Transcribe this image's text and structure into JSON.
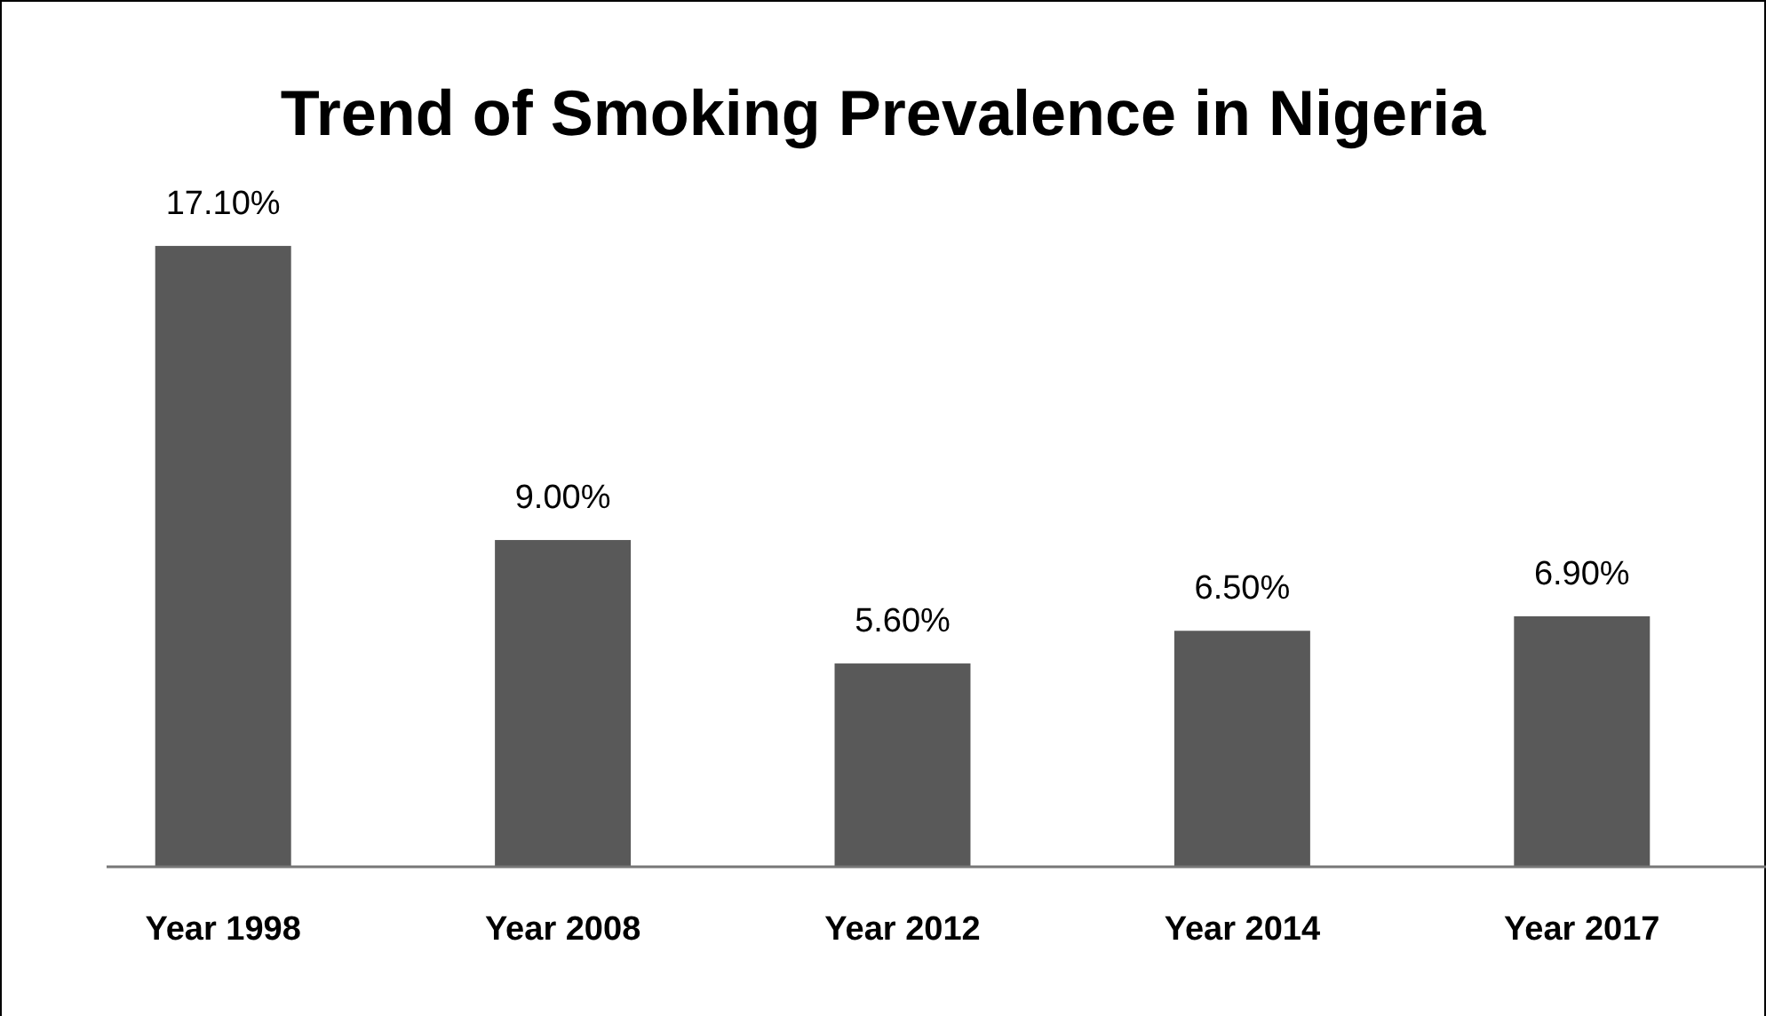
{
  "chart_data": {
    "type": "bar",
    "title": "Trend of Smoking Prevalence in Nigeria",
    "categories": [
      "Year 1998",
      "Year 2008",
      "Year 2012",
      "Year 2014",
      "Year 2017"
    ],
    "values": [
      17.1,
      9.0,
      5.6,
      6.5,
      6.9
    ],
    "value_labels": [
      "17.10%",
      "9.00%",
      "5.60%",
      "6.50%",
      "6.90%"
    ],
    "color": "#595959"
  }
}
